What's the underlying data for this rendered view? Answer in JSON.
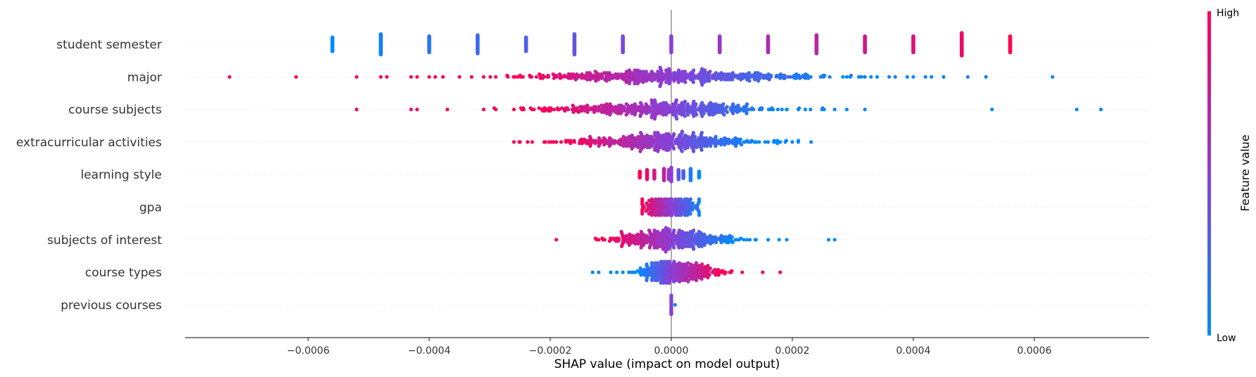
{
  "chart_data": {
    "type": "scatter",
    "subtype": "shap-beeswarm",
    "xlabel": "SHAP value (impact on model output)",
    "xlim": [
      -0.0008,
      0.00079
    ],
    "xticks": [
      "-0.0006",
      "-0.0004",
      "-0.0002",
      "0.0000",
      "0.0002",
      "0.0004",
      "0.0006"
    ],
    "xtick_values": [
      -0.0006,
      -0.0004,
      -0.0002,
      0.0,
      0.0002,
      0.0004,
      0.0006
    ],
    "zero_line": true,
    "grid": false,
    "colorbar": {
      "title": "Feature value",
      "high_label": "High",
      "low_label": "Low",
      "high_color": "#ff0052",
      "mid_color": "#8a3fd6",
      "low_color": "#008bfb"
    },
    "features": [
      {
        "name": "student semester",
        "spread": 0.55,
        "points": [
          {
            "x": -0.00056,
            "v": 0.0,
            "n": 16
          },
          {
            "x": -0.00048,
            "v": 0.07,
            "n": 22
          },
          {
            "x": -0.0004,
            "v": 0.14,
            "n": 18
          },
          {
            "x": -0.00032,
            "v": 0.21,
            "n": 20
          },
          {
            "x": -0.00024,
            "v": 0.29,
            "n": 16
          },
          {
            "x": -0.00016,
            "v": 0.36,
            "n": 22
          },
          {
            "x": -8e-05,
            "v": 0.43,
            "n": 18
          },
          {
            "x": 0.0,
            "v": 0.5,
            "n": 18
          },
          {
            "x": 8e-05,
            "v": 0.57,
            "n": 18
          },
          {
            "x": 0.00016,
            "v": 0.64,
            "n": 18
          },
          {
            "x": 0.00024,
            "v": 0.71,
            "n": 20
          },
          {
            "x": 0.00032,
            "v": 0.79,
            "n": 18
          },
          {
            "x": 0.0004,
            "v": 0.86,
            "n": 18
          },
          {
            "x": 0.00048,
            "v": 0.93,
            "n": 24
          },
          {
            "x": 0.00056,
            "v": 1.0,
            "n": 18
          }
        ]
      },
      {
        "name": "major",
        "seed": 11,
        "n": 520,
        "center": 0.0,
        "neg": 0.00012,
        "pos": 0.00013,
        "cap": 9,
        "outliers_high": [
          -0.00073,
          -0.00062,
          -0.00052,
          -0.00048,
          -0.00047,
          -0.00043,
          -0.00042,
          -0.0004,
          -0.00039,
          -0.00035,
          -0.00033,
          -0.00031,
          -0.00029,
          -0.00027,
          -0.00025
        ],
        "outliers_low": [
          0.00029,
          0.00031,
          0.00032,
          0.00033,
          0.00036,
          0.00037,
          0.00039,
          0.0004,
          0.00042,
          0.00043,
          0.00045,
          0.00049,
          0.00052,
          0.00063
        ]
      },
      {
        "name": "course subjects",
        "seed": 23,
        "n": 480,
        "center": -1e-05,
        "neg": 0.0001,
        "pos": 9e-05,
        "cap": 9,
        "outliers_high": [
          -0.00052,
          -0.00043,
          -0.00042,
          -0.00037,
          -0.00031,
          -0.00029,
          -0.00026,
          -0.00023,
          -0.0002
        ],
        "outliers_low": [
          0.00021,
          0.00023,
          0.00025,
          0.00027,
          0.00029,
          0.00032,
          0.00053,
          0.00067,
          0.00071
        ]
      },
      {
        "name": "extracurricular activities",
        "seed": 37,
        "n": 460,
        "center": -1e-05,
        "neg": 8e-05,
        "pos": 7e-05,
        "cap": 9,
        "outliers_high": [
          -0.00026,
          -0.00025,
          -0.00021,
          -0.00019,
          -0.00016,
          -0.00014
        ],
        "outliers_low": [
          0.00016,
          0.00017,
          0.00018,
          0.00019,
          0.0002,
          0.00021
        ]
      },
      {
        "name": "learning style",
        "spread": 0.55,
        "points": [
          {
            "x": -5.2e-05,
            "v": 1.0,
            "n": 9
          },
          {
            "x": -4e-05,
            "v": 0.9,
            "n": 12
          },
          {
            "x": -2.8e-05,
            "v": 0.8,
            "n": 11
          },
          {
            "x": -1.2e-05,
            "v": 0.7,
            "n": 14
          },
          {
            "x": -4e-06,
            "v": 0.6,
            "n": 12
          },
          {
            "x": 0.0,
            "v": 0.5,
            "n": 16
          },
          {
            "x": 1.2e-05,
            "v": 0.35,
            "n": 12
          },
          {
            "x": 2e-05,
            "v": 0.25,
            "n": 10
          },
          {
            "x": 3.2e-05,
            "v": 0.1,
            "n": 14
          },
          {
            "x": 4.6e-05,
            "v": 0.0,
            "n": 9
          }
        ]
      },
      {
        "name": "gpa",
        "seed": 53,
        "n": 360,
        "center": 0.0,
        "neg": 2.6e-05,
        "pos": 2.6e-05,
        "cap": 6,
        "clip": [
          -4.8e-05,
          4.6e-05
        ],
        "outliers_high": [],
        "outliers_low": []
      },
      {
        "name": "subjects of interest",
        "seed": 67,
        "n": 400,
        "center": 0.0,
        "neg": 5e-05,
        "pos": 5e-05,
        "cap": 9,
        "outliers_high": [
          -0.00019,
          -0.00012,
          -0.00011,
          -9e-05,
          -8e-05
        ],
        "outliers_low": [
          0.0001,
          0.00012,
          0.00013,
          0.00014,
          0.00016,
          0.00026,
          0.00027
        ]
      },
      {
        "name": "course types",
        "seed": 79,
        "n": 360,
        "center": 0.0,
        "neg": 2.5e-05,
        "pos": 4e-05,
        "cap": 8,
        "invert": true,
        "outliers_high": [
          8e-05,
          9e-05,
          0.0001,
          0.00018
        ],
        "outliers_low": [
          -0.00013,
          -0.00012,
          -0.0001,
          -9e-05,
          -8e-05,
          -7e-05
        ]
      },
      {
        "name": "previous courses",
        "seed": 97,
        "n": 300,
        "center": 0.0,
        "neg": 1.8e-06,
        "pos": 1.8e-06,
        "cap": 7,
        "outliers_high": [],
        "outliers_low": []
      }
    ]
  }
}
